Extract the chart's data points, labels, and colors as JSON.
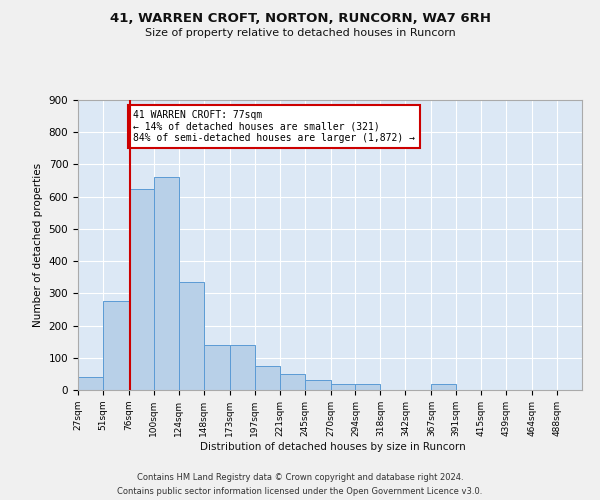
{
  "title1": "41, WARREN CROFT, NORTON, RUNCORN, WA7 6RH",
  "title2": "Size of property relative to detached houses in Runcorn",
  "xlabel": "Distribution of detached houses by size in Runcorn",
  "ylabel": "Number of detached properties",
  "bar_color": "#b8d0e8",
  "bar_edge_color": "#5b9bd5",
  "background_color": "#dce8f5",
  "grid_color": "#ffffff",
  "fig_bg_color": "#f0f0f0",
  "vline_x": 77,
  "vline_color": "#cc0000",
  "annotation_text": "41 WARREN CROFT: 77sqm\n← 14% of detached houses are smaller (321)\n84% of semi-detached houses are larger (1,872) →",
  "annotation_box_color": "#ffffff",
  "annotation_box_edge": "#cc0000",
  "footnote1": "Contains HM Land Registry data © Crown copyright and database right 2024.",
  "footnote2": "Contains public sector information licensed under the Open Government Licence v3.0.",
  "bin_edges": [
    27,
    51,
    76,
    100,
    124,
    148,
    173,
    197,
    221,
    245,
    270,
    294,
    318,
    342,
    367,
    391,
    415,
    439,
    464,
    488,
    512
  ],
  "bar_heights": [
    40,
    275,
    625,
    660,
    335,
    140,
    140,
    75,
    50,
    30,
    20,
    20,
    0,
    0,
    20,
    0,
    0,
    0,
    0,
    0
  ],
  "ylim": [
    0,
    900
  ],
  "yticks": [
    0,
    100,
    200,
    300,
    400,
    500,
    600,
    700,
    800,
    900
  ]
}
